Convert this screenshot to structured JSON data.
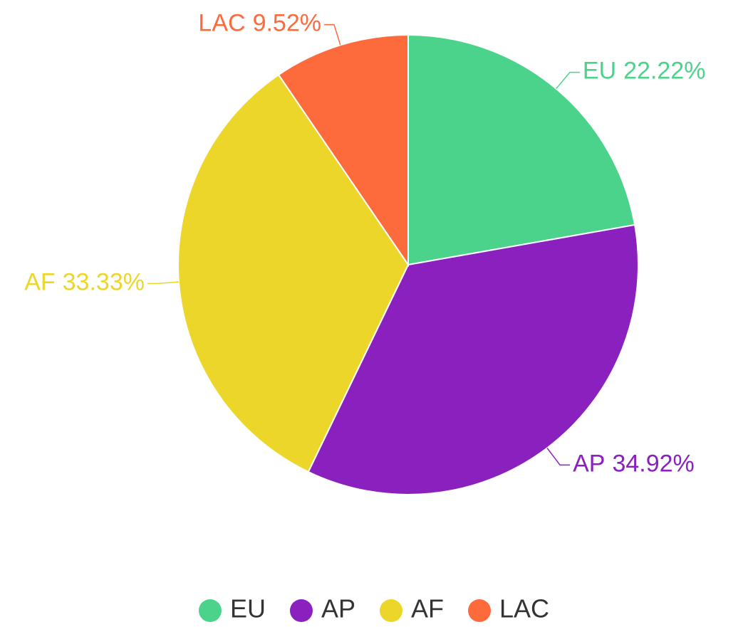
{
  "chart_data": {
    "type": "pie",
    "categories": [
      "EU",
      "AP",
      "AF",
      "LAC"
    ],
    "values": [
      22.22,
      34.92,
      33.33,
      9.52
    ],
    "value_labels": [
      "22.22%",
      "34.92%",
      "33.33%",
      "9.52%"
    ],
    "colors": [
      "#4cd38b",
      "#8a20be",
      "#edd62a",
      "#fd6a3b"
    ],
    "legend": "bottom"
  }
}
